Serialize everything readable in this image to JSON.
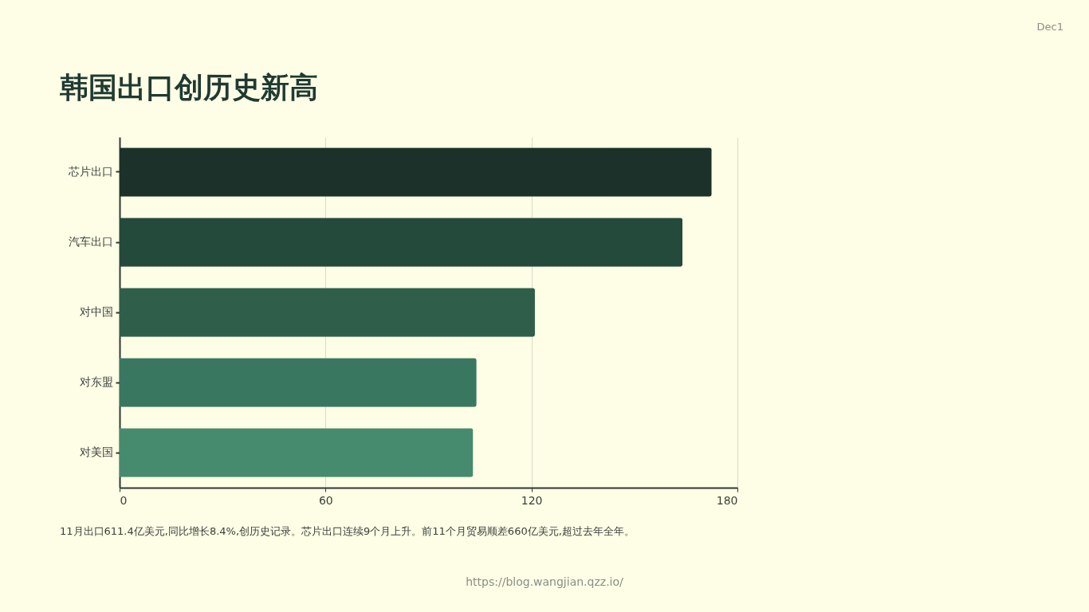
{
  "chart_data": {
    "type": "bar",
    "orientation": "horizontal",
    "title": "韩国出口创历史新高",
    "categories": [
      "芯片出口",
      "汽车出口",
      "对中国",
      "对东盟",
      "对美国"
    ],
    "values": [
      172.5,
      164,
      121,
      104,
      103
    ],
    "colors": [
      "#1b3129",
      "#244a3b",
      "#2f5f4b",
      "#3a7760",
      "#478b6e"
    ],
    "xlim": [
      0,
      180
    ],
    "xticks": [
      0,
      60,
      120,
      180
    ],
    "grid": "x",
    "annotations": [
      "Dec1",
      "11月出口611.4亿美元,同比增长8.4%,创历史记录。芯片出口连续9个月上升。前11个月贸易顺差660亿美元,超过去年全年。",
      "https://blog.wangjian.qzz.io/"
    ]
  }
}
